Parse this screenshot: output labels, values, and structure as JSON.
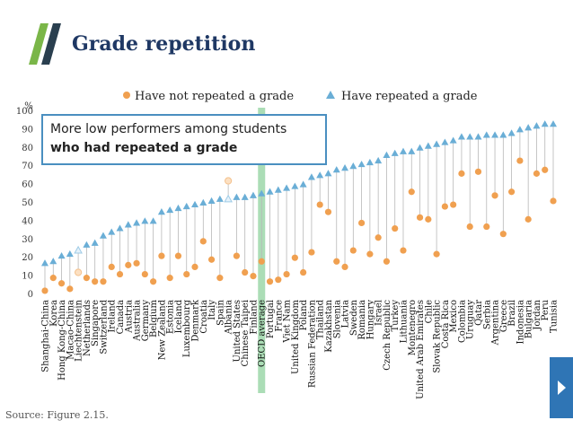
{
  "header": {
    "title": "Grade repetition"
  },
  "callout": {
    "line1": "More low performers among students",
    "line2": "who had repeated a grade"
  },
  "source": "Source: Figure 2.15.",
  "colors": {
    "not_repeated": "#f0a050",
    "repeated": "#6aaed6",
    "highlight": "#8fd19e",
    "title": "#1f3864"
  },
  "chart_data": {
    "type": "scatter",
    "ylabel": "%",
    "ylim": [
      0,
      100
    ],
    "yticks": [
      0,
      10,
      20,
      30,
      40,
      50,
      60,
      70,
      80,
      90,
      100
    ],
    "highlight_category": "OECD average",
    "hollow_points": {
      "Liechtenstein": true,
      "Albania": true
    },
    "categories": [
      "Shanghai-China",
      "Korea",
      "Hong Kong-China",
      "Macao-China",
      "Liechtenstein",
      "Netherlands",
      "Singapore",
      "Switzerland",
      "Ireland",
      "Canada",
      "Austria",
      "Australia",
      "Germany",
      "Belgium",
      "New Zealand",
      "Estonia",
      "Iceland",
      "Luxembourg",
      "Denmark",
      "Croatia",
      "Italy",
      "Spain",
      "Albania",
      "United States",
      "Chinese Taipei",
      "Finland",
      "OECD average",
      "Portugal",
      "France",
      "Viet Nam",
      "United Kingdom",
      "Poland",
      "Russian Federation",
      "Thailand",
      "Kazakhstan",
      "Slovenia",
      "Latvia",
      "Sweden",
      "Romania",
      "Hungary",
      "Israel",
      "Czech Republic",
      "Turkey",
      "Lithuania",
      "Montenegro",
      "United Arab Emirates",
      "Chile",
      "Slovak Republic",
      "Costa Rica",
      "Mexico",
      "Colombia",
      "Uruguay",
      "Qatar",
      "Serbia",
      "Argentina",
      "Greece",
      "Brazil",
      "Indonesia",
      "Bulgaria",
      "Jordan",
      "Peru",
      "Tunisia"
    ],
    "series": [
      {
        "name": "Have not repeated a grade",
        "values": [
          2,
          9,
          6,
          3,
          12,
          9,
          7,
          7,
          15,
          11,
          16,
          17,
          11,
          7,
          21,
          9,
          21,
          11,
          15,
          29,
          19,
          9,
          62,
          21,
          12,
          10,
          18,
          7,
          8,
          11,
          20,
          12,
          23,
          49,
          45,
          18,
          15,
          24,
          39,
          22,
          31,
          18,
          36,
          24,
          56,
          42,
          41,
          22,
          48,
          49,
          66,
          37,
          67,
          37,
          54,
          33,
          56,
          73,
          41,
          66,
          68,
          51
        ]
      },
      {
        "name": "Have repeated a grade",
        "values": [
          17,
          18,
          21,
          22,
          24,
          27,
          28,
          32,
          34,
          36,
          38,
          39,
          40,
          40,
          45,
          46,
          47,
          48,
          49,
          50,
          51,
          52,
          52,
          53,
          53,
          54,
          55,
          56,
          57,
          58,
          59,
          60,
          64,
          65,
          66,
          68,
          69,
          70,
          71,
          72,
          73,
          76,
          77,
          78,
          78,
          80,
          81,
          82,
          83,
          84,
          86,
          86,
          86,
          87,
          87,
          87,
          88,
          90,
          91,
          92,
          93,
          93
        ]
      }
    ]
  }
}
